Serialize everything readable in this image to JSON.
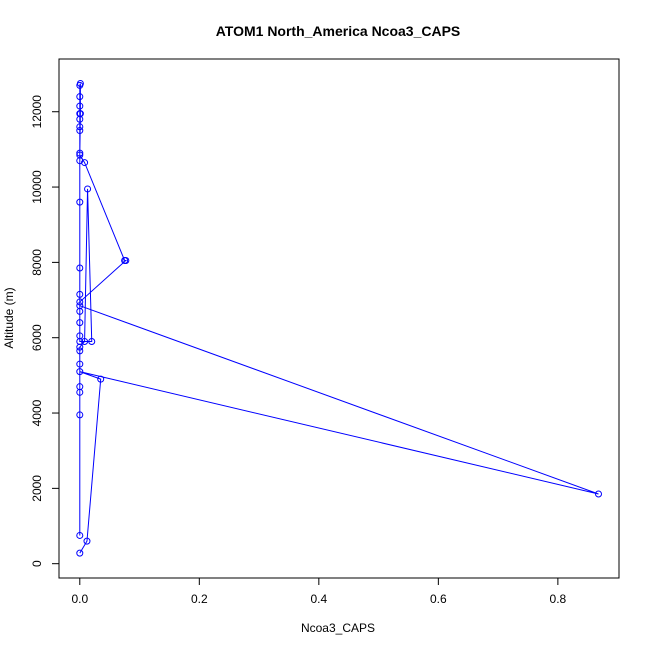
{
  "chart_data": {
    "type": "line",
    "title": "ATOM1 North_America Ncoa3_CAPS",
    "xlabel": "Ncoa3_CAPS",
    "ylabel": "Altitude (m)",
    "xlim": [
      -0.0348,
      0.9023
    ],
    "ylim": [
      -380,
      13400
    ],
    "x_ticks": [
      0,
      0.2,
      0.4,
      0.6,
      0.8
    ],
    "x_tick_labels": [
      "0.0",
      "0.2",
      "0.4",
      "0.6",
      "0.8"
    ],
    "y_ticks": [
      0,
      2000,
      4000,
      6000,
      8000,
      10000,
      12000
    ],
    "y_tick_labels": [
      "0",
      "2000",
      "4000",
      "6000",
      "8000",
      "10000",
      "12000"
    ],
    "grid": false,
    "colors": {
      "series": "#0000ff",
      "axis": "#000000"
    },
    "series": [
      {
        "marker": "open-circle",
        "points": [
          {
            "x": 0.0,
            "y": 280
          },
          {
            "x": 0.012,
            "y": 600
          },
          {
            "x": 0.035,
            "y": 4900
          },
          {
            "x": 0.0,
            "y": 5100
          },
          {
            "x": 0.868,
            "y": 1850
          },
          {
            "x": 0.0,
            "y": 6850
          },
          {
            "x": 0.0,
            "y": 7150
          },
          {
            "x": 0.0,
            "y": 7850
          },
          {
            "x": 0.0,
            "y": 9600
          },
          {
            "x": 0.0,
            "y": 10700
          },
          {
            "x": 0.0,
            "y": 10900
          },
          {
            "x": 0.0,
            "y": 11500
          },
          {
            "x": 0.0,
            "y": 11600
          },
          {
            "x": 0.0,
            "y": 11800
          },
          {
            "x": 0.0,
            "y": 11950
          },
          {
            "x": 0.0,
            "y": 12150
          },
          {
            "x": 0.0,
            "y": 12400
          },
          {
            "x": 0.0,
            "y": 12700
          },
          {
            "x": 0.001,
            "y": 12750
          },
          {
            "x": 0.001,
            "y": 11950
          },
          {
            "x": 0.0,
            "y": 10850
          },
          {
            "x": 0.008,
            "y": 10650
          },
          {
            "x": 0.075,
            "y": 8050
          },
          {
            "x": 0.077,
            "y": 8050
          },
          {
            "x": 0.0,
            "y": 6950
          },
          {
            "x": 0.0,
            "y": 6700
          },
          {
            "x": 0.0,
            "y": 6400
          },
          {
            "x": 0.0,
            "y": 6050
          },
          {
            "x": 0.0,
            "y": 5900
          },
          {
            "x": 0.02,
            "y": 5900
          },
          {
            "x": 0.013,
            "y": 9950
          },
          {
            "x": 0.008,
            "y": 5900
          },
          {
            "x": 0.0,
            "y": 5750
          },
          {
            "x": 0.0,
            "y": 5650
          },
          {
            "x": 0.0,
            "y": 5300
          },
          {
            "x": 0.0,
            "y": 4700
          },
          {
            "x": 0.0,
            "y": 4550
          },
          {
            "x": 0.0,
            "y": 3950
          },
          {
            "x": 0.0,
            "y": 750
          }
        ]
      }
    ]
  }
}
